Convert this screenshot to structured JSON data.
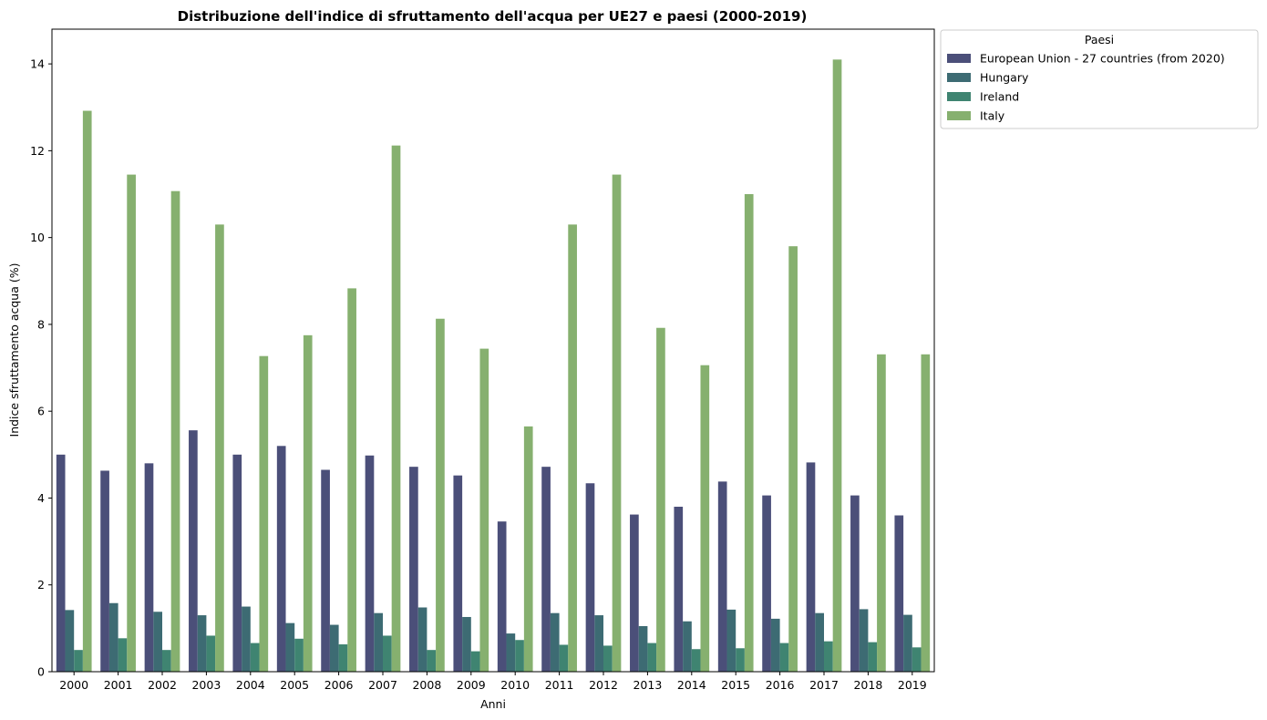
{
  "chart_data": {
    "type": "bar",
    "title": "Distribuzione dell'indice di sfruttamento dell'acqua per UE27 e paesi (2000-2019)",
    "xlabel": "Anni",
    "ylabel": "Indice sfruttamento acqua (%)",
    "ylim": [
      0,
      14.8
    ],
    "yticks": [
      0,
      2,
      4,
      6,
      8,
      10,
      12,
      14
    ],
    "grid": false,
    "legend": {
      "title": "Paesi",
      "placement": "outside-top-right"
    },
    "categories": [
      "2000",
      "2001",
      "2002",
      "2003",
      "2004",
      "2005",
      "2006",
      "2007",
      "2008",
      "2009",
      "2010",
      "2011",
      "2012",
      "2013",
      "2014",
      "2015",
      "2016",
      "2017",
      "2018",
      "2019"
    ],
    "series": [
      {
        "name": "European Union - 27 countries (from 2020)",
        "color": "#4b4f79",
        "values": [
          5.0,
          4.63,
          4.8,
          5.56,
          5.0,
          5.2,
          4.65,
          4.98,
          4.72,
          4.52,
          3.46,
          4.72,
          4.34,
          3.62,
          3.8,
          4.38,
          4.06,
          4.82,
          4.06,
          3.6
        ]
      },
      {
        "name": "Hungary",
        "color": "#3d6b73",
        "values": [
          1.42,
          1.58,
          1.38,
          1.3,
          1.5,
          1.12,
          1.08,
          1.35,
          1.48,
          1.26,
          0.88,
          1.35,
          1.3,
          1.05,
          1.16,
          1.43,
          1.22,
          1.35,
          1.44,
          1.31
        ]
      },
      {
        "name": "Ireland",
        "color": "#3f8471",
        "values": [
          0.5,
          0.77,
          0.5,
          0.83,
          0.66,
          0.76,
          0.63,
          0.83,
          0.5,
          0.47,
          0.73,
          0.62,
          0.6,
          0.66,
          0.52,
          0.54,
          0.66,
          0.7,
          0.68,
          0.56
        ]
      },
      {
        "name": "Italy",
        "color": "#86b06f",
        "values": [
          12.92,
          11.45,
          11.07,
          10.3,
          7.27,
          7.75,
          8.83,
          12.12,
          8.13,
          7.44,
          5.65,
          10.3,
          11.45,
          7.92,
          7.06,
          11.0,
          9.8,
          14.1,
          7.31,
          7.31
        ]
      }
    ]
  }
}
